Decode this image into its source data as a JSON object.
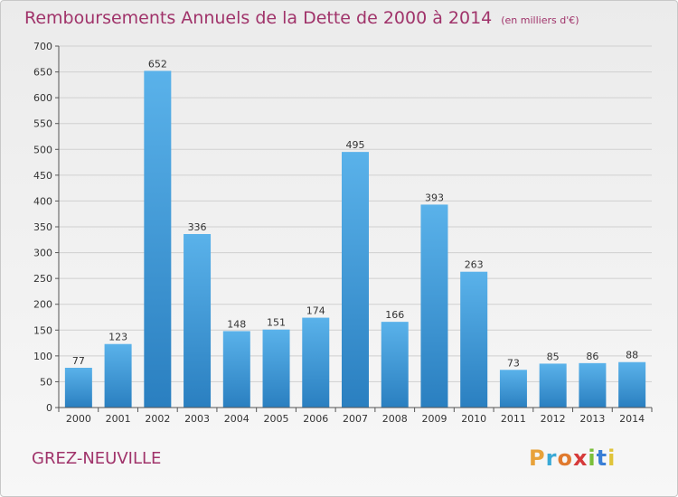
{
  "chart_data": {
    "type": "bar",
    "title": "Remboursements Annuels de la Dette de 2000 à 2014",
    "subtitle": "(en milliers d'€)",
    "categories": [
      "2000",
      "2001",
      "2002",
      "2003",
      "2004",
      "2005",
      "2006",
      "2007",
      "2008",
      "2009",
      "2010",
      "2011",
      "2012",
      "2013",
      "2014"
    ],
    "values": [
      77,
      123,
      652,
      336,
      148,
      151,
      174,
      495,
      166,
      393,
      263,
      73,
      85,
      86,
      88
    ],
    "ylim": [
      0,
      700
    ],
    "yticks": [
      0,
      50,
      100,
      150,
      200,
      250,
      300,
      350,
      400,
      450,
      500,
      550,
      600,
      650,
      700
    ],
    "grid": true,
    "xlabel": "",
    "ylabel": ""
  },
  "commune": "GREZ-NEUVILLE",
  "logo": {
    "letters": [
      "P",
      "r",
      "o",
      "x",
      "i",
      "t",
      "i"
    ],
    "colors": [
      "#e8a23a",
      "#3aa9d6",
      "#e07a2e",
      "#d63a3a",
      "#7bbf3a",
      "#3a7fd6",
      "#e0c43a"
    ]
  },
  "colors": {
    "bar_top": "#5ab2ea",
    "bar_bottom": "#2a7fc0",
    "title": "#a0336a"
  }
}
